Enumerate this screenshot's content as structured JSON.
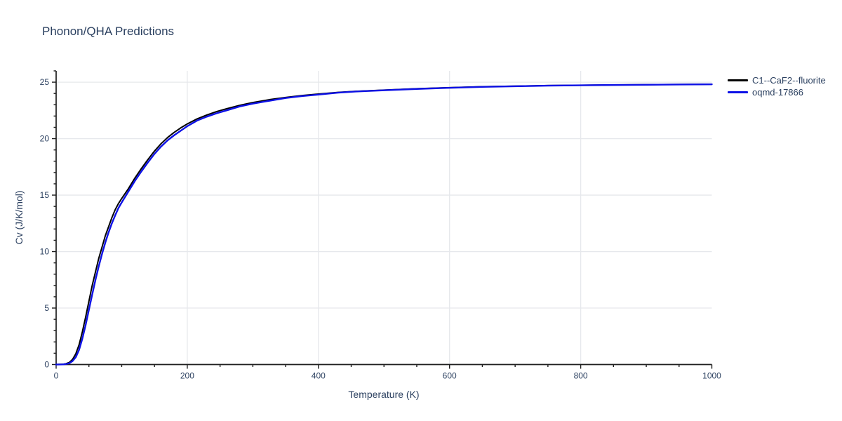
{
  "colors": {
    "text": "#2a3f5f",
    "axis_line": "#1f1f1f",
    "grid": "#e6e8ec",
    "background": "#ffffff"
  },
  "chart_data": {
    "type": "line",
    "title": "Phonon/QHA Predictions",
    "xlabel": "Temperature (K)",
    "ylabel": "Cv (J/K/mol)",
    "xlim": [
      0,
      1000
    ],
    "ylim": [
      0,
      26
    ],
    "x_ticks": [
      0,
      200,
      400,
      600,
      800,
      1000
    ],
    "x_minor_step": 50,
    "y_ticks": [
      0,
      5,
      10,
      15,
      20,
      25
    ],
    "y_minor_step": 1,
    "grid": true,
    "legend_position": "top-right",
    "series": [
      {
        "name": "C1--CaF2--fluorite",
        "color": "#000000",
        "width": 2,
        "x": [
          0,
          10,
          15,
          20,
          25,
          30,
          35,
          40,
          45,
          50,
          55,
          60,
          65,
          70,
          75,
          80,
          85,
          90,
          95,
          100,
          110,
          120,
          130,
          140,
          150,
          160,
          170,
          180,
          190,
          200,
          215,
          230,
          245,
          260,
          280,
          300,
          325,
          350,
          375,
          400,
          430,
          460,
          500,
          550,
          600,
          650,
          700,
          750,
          800,
          850,
          900,
          950,
          1000
        ],
        "y": [
          0,
          0.02,
          0.07,
          0.18,
          0.45,
          0.95,
          1.75,
          2.9,
          4.2,
          5.6,
          7.0,
          8.2,
          9.4,
          10.4,
          11.4,
          12.2,
          13.0,
          13.7,
          14.25,
          14.7,
          15.55,
          16.5,
          17.35,
          18.15,
          18.9,
          19.55,
          20.1,
          20.55,
          20.95,
          21.3,
          21.75,
          22.1,
          22.4,
          22.65,
          22.95,
          23.2,
          23.45,
          23.65,
          23.82,
          23.95,
          24.1,
          24.2,
          24.3,
          24.42,
          24.52,
          24.6,
          24.65,
          24.7,
          24.73,
          24.76,
          24.78,
          24.8,
          24.82
        ]
      },
      {
        "name": "oqmd-17866",
        "color": "#0d11e6",
        "width": 2.4,
        "x": [
          0,
          10,
          15,
          20,
          25,
          30,
          35,
          40,
          45,
          50,
          55,
          60,
          65,
          70,
          75,
          80,
          85,
          90,
          95,
          100,
          110,
          120,
          130,
          140,
          150,
          160,
          170,
          180,
          190,
          200,
          215,
          230,
          245,
          260,
          280,
          300,
          325,
          350,
          375,
          400,
          430,
          460,
          500,
          550,
          600,
          650,
          700,
          750,
          800,
          850,
          900,
          950,
          1000
        ],
        "y": [
          0,
          0.01,
          0.04,
          0.11,
          0.3,
          0.65,
          1.3,
          2.3,
          3.5,
          4.85,
          6.2,
          7.5,
          8.7,
          9.8,
          10.8,
          11.7,
          12.5,
          13.2,
          13.85,
          14.35,
          15.3,
          16.25,
          17.1,
          17.9,
          18.65,
          19.3,
          19.85,
          20.3,
          20.7,
          21.1,
          21.6,
          21.95,
          22.25,
          22.5,
          22.85,
          23.1,
          23.35,
          23.6,
          23.77,
          23.9,
          24.07,
          24.18,
          24.28,
          24.4,
          24.5,
          24.58,
          24.64,
          24.69,
          24.72,
          24.75,
          24.77,
          24.79,
          24.81
        ]
      }
    ]
  }
}
